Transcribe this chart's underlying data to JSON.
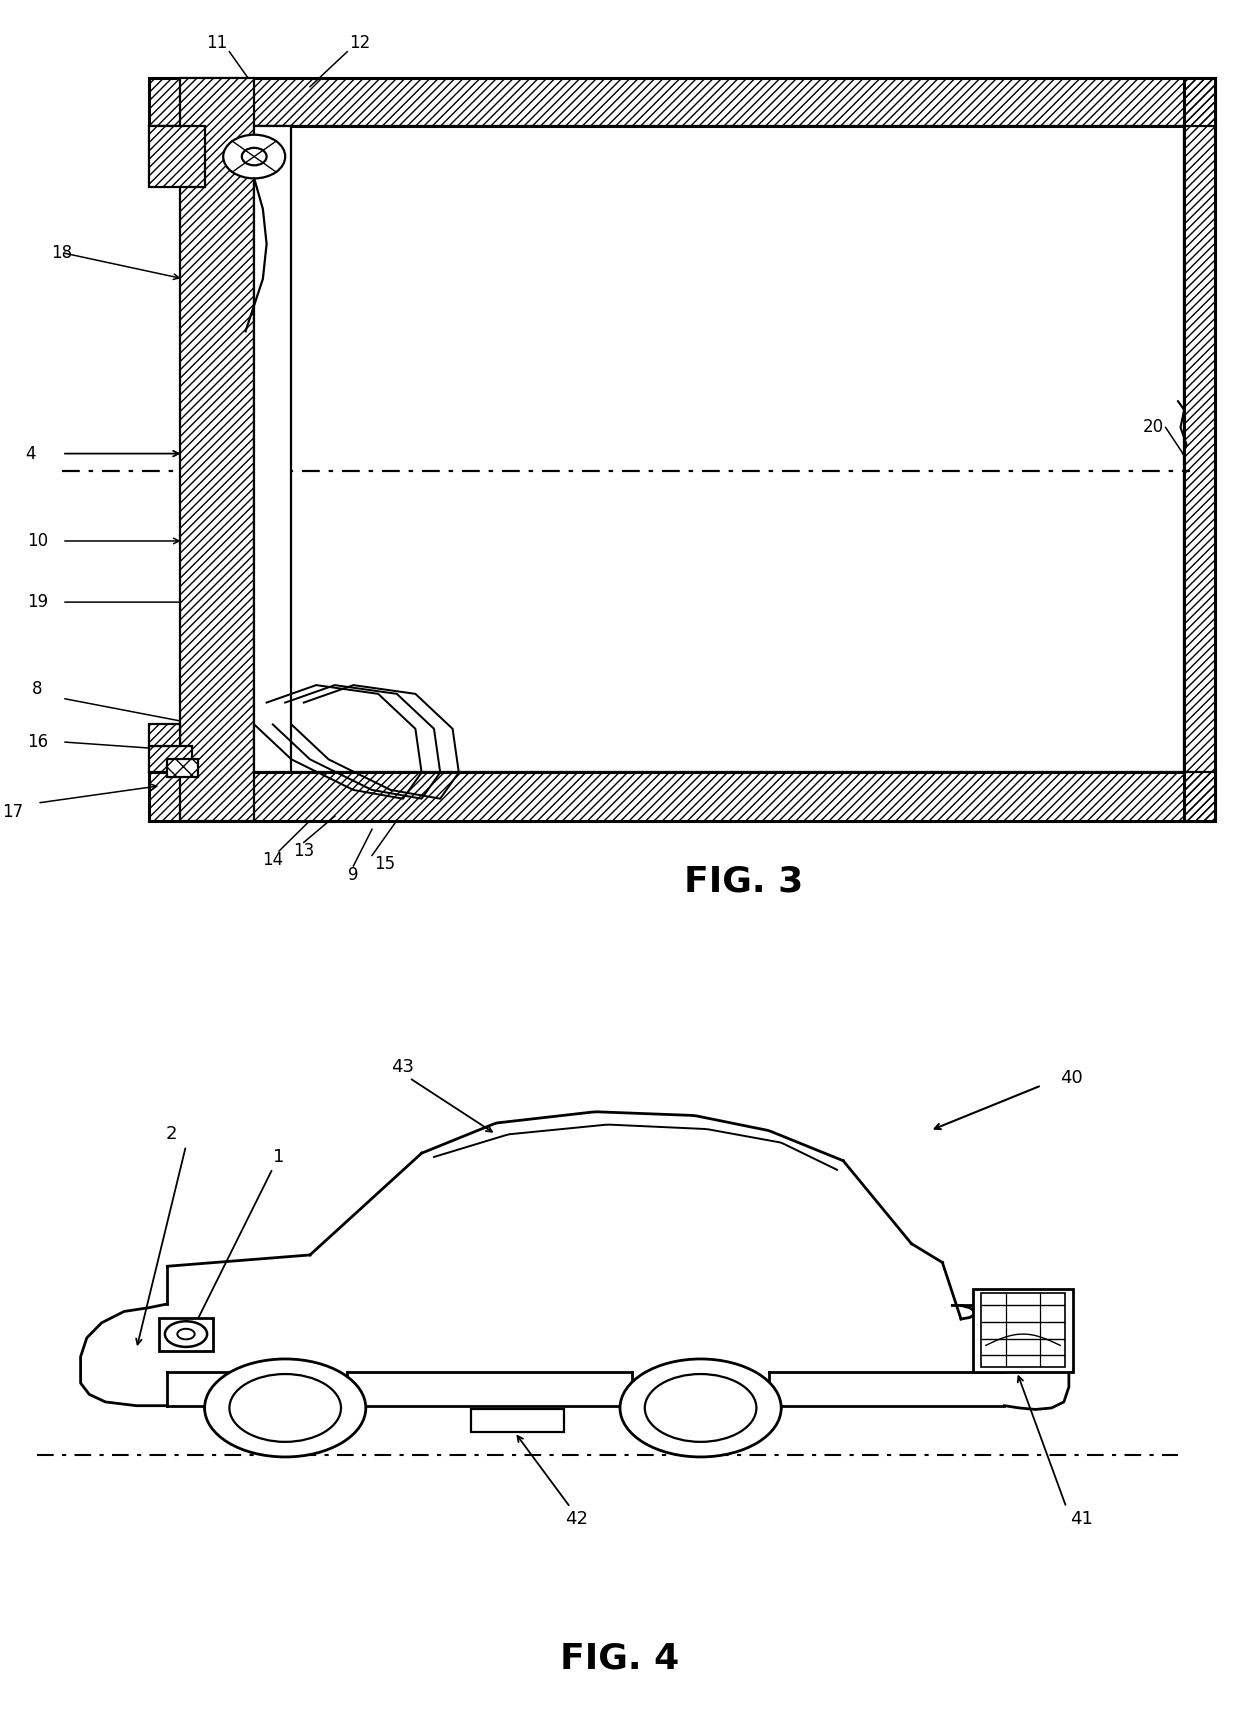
{
  "fig_width": 12.4,
  "fig_height": 17.13,
  "bg_color": "#ffffff",
  "fig3_label": "FIG. 3",
  "fig4_label": "FIG. 4"
}
